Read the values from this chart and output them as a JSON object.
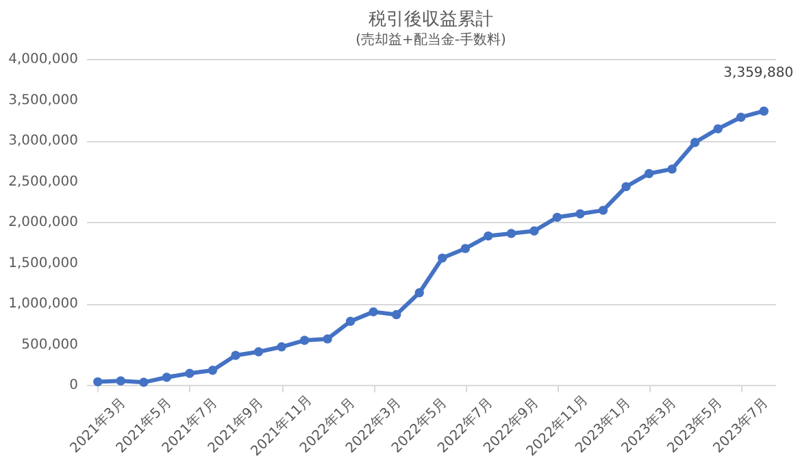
{
  "chart_data": {
    "type": "line",
    "title": "税引後収益累計",
    "subtitle": "(売却益+配当金-手数料)",
    "categories": [
      "2021年3月",
      null,
      "2021年5月",
      null,
      "2021年7月",
      null,
      "2021年9月",
      null,
      "2021年11月",
      null,
      "2022年1月",
      null,
      "2022年3月",
      null,
      "2022年5月",
      null,
      "2022年7月",
      null,
      "2022年9月",
      null,
      "2022年11月",
      null,
      "2023年1月",
      null,
      "2023年3月",
      null,
      "2023年5月",
      null,
      "2023年7月",
      null
    ],
    "series": [
      {
        "color": "#4472c4",
        "values": [
          37000,
          49000,
          31000,
          92000,
          141000,
          178000,
          362000,
          405000,
          466000,
          546000,
          564000,
          779000,
          896000,
          862000,
          1130000,
          1556000,
          1673000,
          1827000,
          1858000,
          1889000,
          2056000,
          2099000,
          2142000,
          2432000,
          2593000,
          2648000,
          2975000,
          3142000,
          3284000,
          3359880
        ],
        "value_labels": [
          null,
          null,
          null,
          null,
          null,
          null,
          null,
          null,
          null,
          null,
          null,
          null,
          null,
          null,
          null,
          null,
          null,
          null,
          null,
          null,
          null,
          null,
          null,
          null,
          null,
          null,
          null,
          null,
          null,
          "3,359,880"
        ]
      }
    ],
    "ylim": [
      0,
      4000000
    ],
    "yticks": [
      {
        "value": 0,
        "label": "0"
      },
      {
        "value": 500000,
        "label": "500,000"
      },
      {
        "value": 1000000,
        "label": "1,000,000"
      },
      {
        "value": 1500000,
        "label": "1,500,000"
      },
      {
        "value": 2000000,
        "label": "2,000,000"
      },
      {
        "value": 2500000,
        "label": "2,500,000"
      },
      {
        "value": 3000000,
        "label": "3,000,000"
      },
      {
        "value": 3500000,
        "label": "3,500,000"
      },
      {
        "value": 4000000,
        "label": "4,000,000"
      }
    ],
    "grid": "y",
    "marker": "circle",
    "line_style": "solid"
  }
}
